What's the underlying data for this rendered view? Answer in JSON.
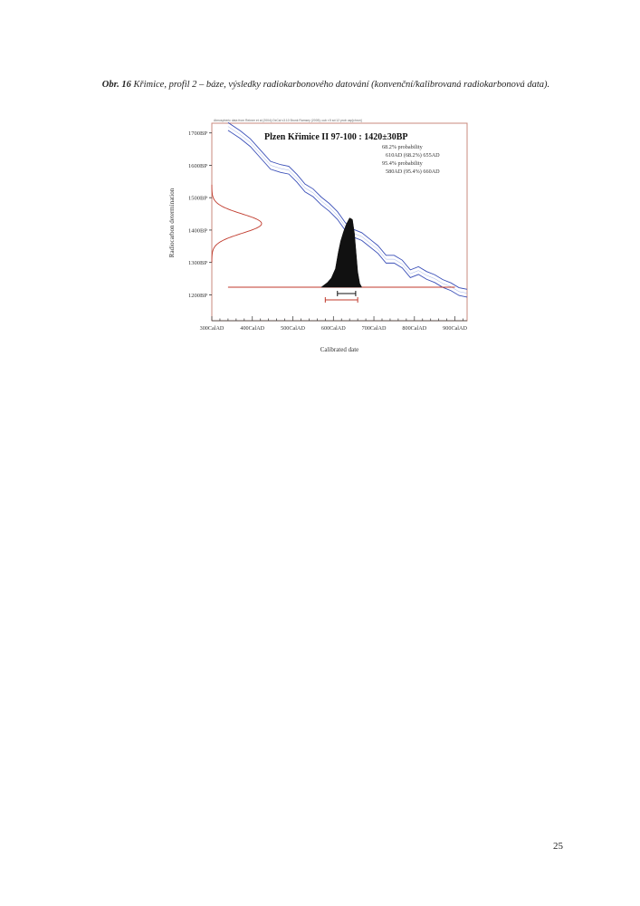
{
  "caption": {
    "label": "Obr. 16",
    "text": "Křimice, profil 2 – báze, výsledky radiokarbonového datování (konvenční/kalibrovaná radiokarbonová data)."
  },
  "figure": {
    "header_text": "Atmospheric data from Reimer et al (2004);OxCal v3.10 Bronk Ramsey (2005); cub r:5 sd:12 prob usp[chron]",
    "sample_title": "Plzen Křimice II 97-100 : 1420±30BP",
    "prob_1_title": "68.2% probability",
    "prob_1_range": "610AD (68.2%) 655AD",
    "prob_2_title": "95.4% probability",
    "prob_2_range": "580AD (95.4%) 660AD"
  },
  "chart_data": {
    "type": "line",
    "title": "Plzen Křimice II 97-100 : 1420±30BP",
    "xlabel": "Calibrated date",
    "ylabel": "Radiocarbon determination",
    "x_ticks": [
      "300CalAD",
      "400CalAD",
      "500CalAD",
      "600CalAD",
      "700CalAD",
      "800CalAD",
      "900CalAD"
    ],
    "y_ticks": [
      "1700BP",
      "1600BP",
      "1500BP",
      "1400BP",
      "1300BP",
      "1200BP"
    ],
    "xlim": [
      300,
      930
    ],
    "ylim": [
      1120,
      1730
    ],
    "calibration_curve": {
      "x": [
        340,
        370,
        395,
        420,
        445,
        470,
        490,
        510,
        530,
        550,
        570,
        590,
        610,
        630,
        650,
        670,
        690,
        710,
        730,
        750,
        770,
        790,
        810,
        830,
        850,
        870,
        890,
        910,
        930
      ],
      "y": [
        1720,
        1695,
        1670,
        1635,
        1600,
        1590,
        1585,
        1560,
        1530,
        1515,
        1490,
        1470,
        1445,
        1410,
        1390,
        1380,
        1360,
        1340,
        1310,
        1310,
        1295,
        1265,
        1275,
        1260,
        1250,
        1235,
        1225,
        1210,
        1205
      ],
      "band_sd": 12
    },
    "measurement": {
      "mean": 1420,
      "sd": 30
    },
    "posterior": {
      "x": [
        570,
        585,
        595,
        605,
        612,
        618,
        625,
        632,
        640,
        647,
        652,
        656,
        660,
        665,
        670
      ],
      "p": [
        0,
        0.06,
        0.12,
        0.24,
        0.45,
        0.6,
        0.72,
        0.82,
        0.9,
        0.88,
        0.7,
        0.45,
        0.2,
        0.05,
        0
      ]
    },
    "ranges": {
      "sigma1": [
        610,
        655
      ],
      "sigma2": [
        580,
        660
      ]
    }
  },
  "page_number": "25"
}
